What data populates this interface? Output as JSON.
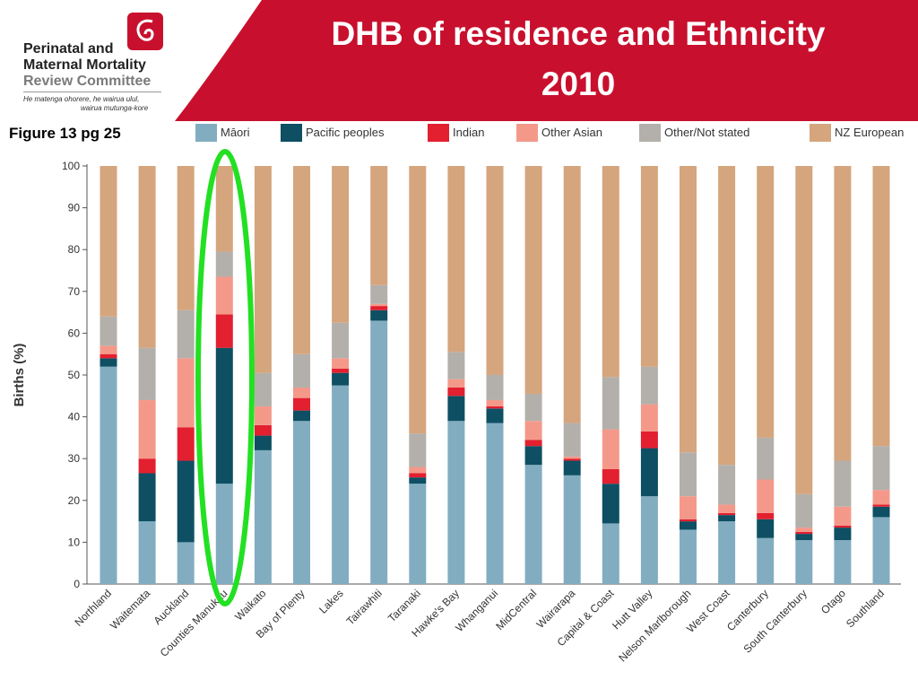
{
  "logo": {
    "org_line1": "Perinatal and",
    "org_line2": "Maternal Mortality",
    "org_line3": "Review Committee",
    "tagline_line1": "He matenga ohorere, he wairua ulul,",
    "tagline_line2": "wairua mutunga-kore"
  },
  "title": {
    "line1": "DHB of residence and Ethnicity",
    "line2": "2010"
  },
  "figure_ref": "Figure 13 pg 25",
  "colors": {
    "banner": "#c8102e",
    "highlight_ellipse": "#22e022"
  },
  "chart_data": {
    "type": "bar",
    "stacked": true,
    "ylabel": "Births (%)",
    "ylim": [
      0,
      100
    ],
    "yticks": [
      0,
      10,
      20,
      30,
      40,
      50,
      60,
      70,
      80,
      90,
      100
    ],
    "grid": false,
    "legend_position": "top",
    "highlighted_category": "Counties Manukau",
    "categories": [
      "Northland",
      "Waitemata",
      "Auckland",
      "Counties Manukau",
      "Waikato",
      "Bay of Plenty",
      "Lakes",
      "Tairawhiti",
      "Taranaki",
      "Hawke's Bay",
      "Whanganui",
      "MidCentral",
      "Wairarapa",
      "Capital & Coast",
      "Hutt Valley",
      "Nelson Marlborough",
      "West Coast",
      "Canterbury",
      "South Canterbury",
      "Otago",
      "Southland"
    ],
    "series": [
      {
        "name": "Māori",
        "color": "#82adc1",
        "values": [
          52,
          15,
          10,
          24,
          32,
          39,
          47.5,
          63,
          24,
          39,
          38.5,
          28.5,
          26,
          14.5,
          21,
          13,
          15,
          11,
          10.5,
          10.5,
          16
        ]
      },
      {
        "name": "Pacific peoples",
        "color": "#0e4f63",
        "values": [
          2,
          11.5,
          19.5,
          32.5,
          3.5,
          2.5,
          3,
          2.5,
          1.5,
          6,
          3.5,
          4.5,
          3.5,
          9.5,
          11.5,
          2,
          1.5,
          4.5,
          1.5,
          3,
          2.5
        ]
      },
      {
        "name": "Indian",
        "color": "#e2202f",
        "values": [
          1,
          3.5,
          8,
          8,
          2.5,
          3,
          1,
          1,
          1,
          2,
          0.5,
          1.5,
          0.5,
          3.5,
          4,
          0.5,
          0.5,
          1.5,
          0.5,
          0.5,
          0.5
        ]
      },
      {
        "name": "Other Asian",
        "color": "#f4998a",
        "values": [
          2,
          14,
          16.5,
          9,
          4.5,
          2.5,
          2.5,
          0.5,
          1.5,
          2,
          1.5,
          4.5,
          0.5,
          9.5,
          6.5,
          5.5,
          2,
          8,
          1,
          4.5,
          3.5
        ]
      },
      {
        "name": "Other/Not stated",
        "color": "#b3b0ab",
        "values": [
          7,
          12.5,
          11.5,
          6,
          8,
          8,
          8.5,
          4.5,
          8,
          6.5,
          6,
          6.5,
          8,
          12.5,
          9,
          10.5,
          9.5,
          10,
          8,
          11,
          10.5
        ]
      },
      {
        "name": "NZ European",
        "color": "#d5a57d",
        "values": [
          36,
          43.5,
          34.5,
          20.5,
          49.5,
          45,
          37.5,
          28.5,
          64,
          44.5,
          50,
          54.5,
          61.5,
          50.5,
          48,
          68.5,
          71.5,
          65,
          78.5,
          70.5,
          67
        ]
      }
    ]
  }
}
